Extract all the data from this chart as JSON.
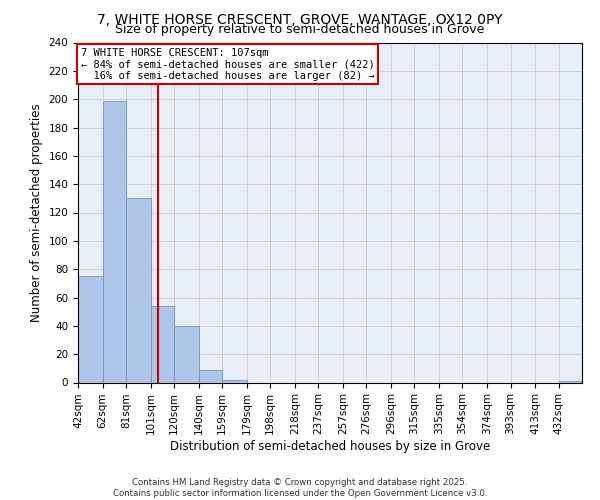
{
  "title1": "7, WHITE HORSE CRESCENT, GROVE, WANTAGE, OX12 0PY",
  "title2": "Size of property relative to semi-detached houses in Grove",
  "xlabel": "Distribution of semi-detached houses by size in Grove",
  "ylabel": "Number of semi-detached properties",
  "bar_values": [
    75,
    199,
    130,
    54,
    40,
    9,
    2,
    0,
    0,
    0,
    0,
    0,
    0,
    0,
    0,
    0,
    0,
    0,
    0,
    0,
    1
  ],
  "bin_edges": [
    42,
    62,
    81,
    101,
    120,
    140,
    159,
    179,
    198,
    218,
    237,
    257,
    276,
    296,
    315,
    335,
    354,
    374,
    393,
    413,
    432,
    451
  ],
  "tick_labels": [
    "42sqm",
    "62sqm",
    "81sqm",
    "101sqm",
    "120sqm",
    "140sqm",
    "159sqm",
    "179sqm",
    "198sqm",
    "218sqm",
    "237sqm",
    "257sqm",
    "276sqm",
    "296sqm",
    "315sqm",
    "335sqm",
    "354sqm",
    "374sqm",
    "393sqm",
    "413sqm",
    "432sqm"
  ],
  "property_size": 107,
  "property_label": "7 WHITE HORSE CRESCENT: 107sqm",
  "pct_smaller": 84,
  "pct_larger": 16,
  "n_smaller": 422,
  "n_larger": 82,
  "bar_color": "#aec6e8",
  "bar_edge_color": "#5a8fc2",
  "vline_color": "#cc0000",
  "box_edge_color": "#cc0000",
  "grid_color": "#cccccc",
  "background_color": "#e8eef8",
  "ylim": [
    0,
    240
  ],
  "yticks": [
    0,
    20,
    40,
    60,
    80,
    100,
    120,
    140,
    160,
    180,
    200,
    220,
    240
  ],
  "footer1": "Contains HM Land Registry data © Crown copyright and database right 2025.",
  "footer2": "Contains public sector information licensed under the Open Government Licence v3.0.",
  "title_fontsize": 10,
  "subtitle_fontsize": 9,
  "axis_label_fontsize": 8.5,
  "tick_fontsize": 7.5,
  "annot_fontsize": 7.5
}
